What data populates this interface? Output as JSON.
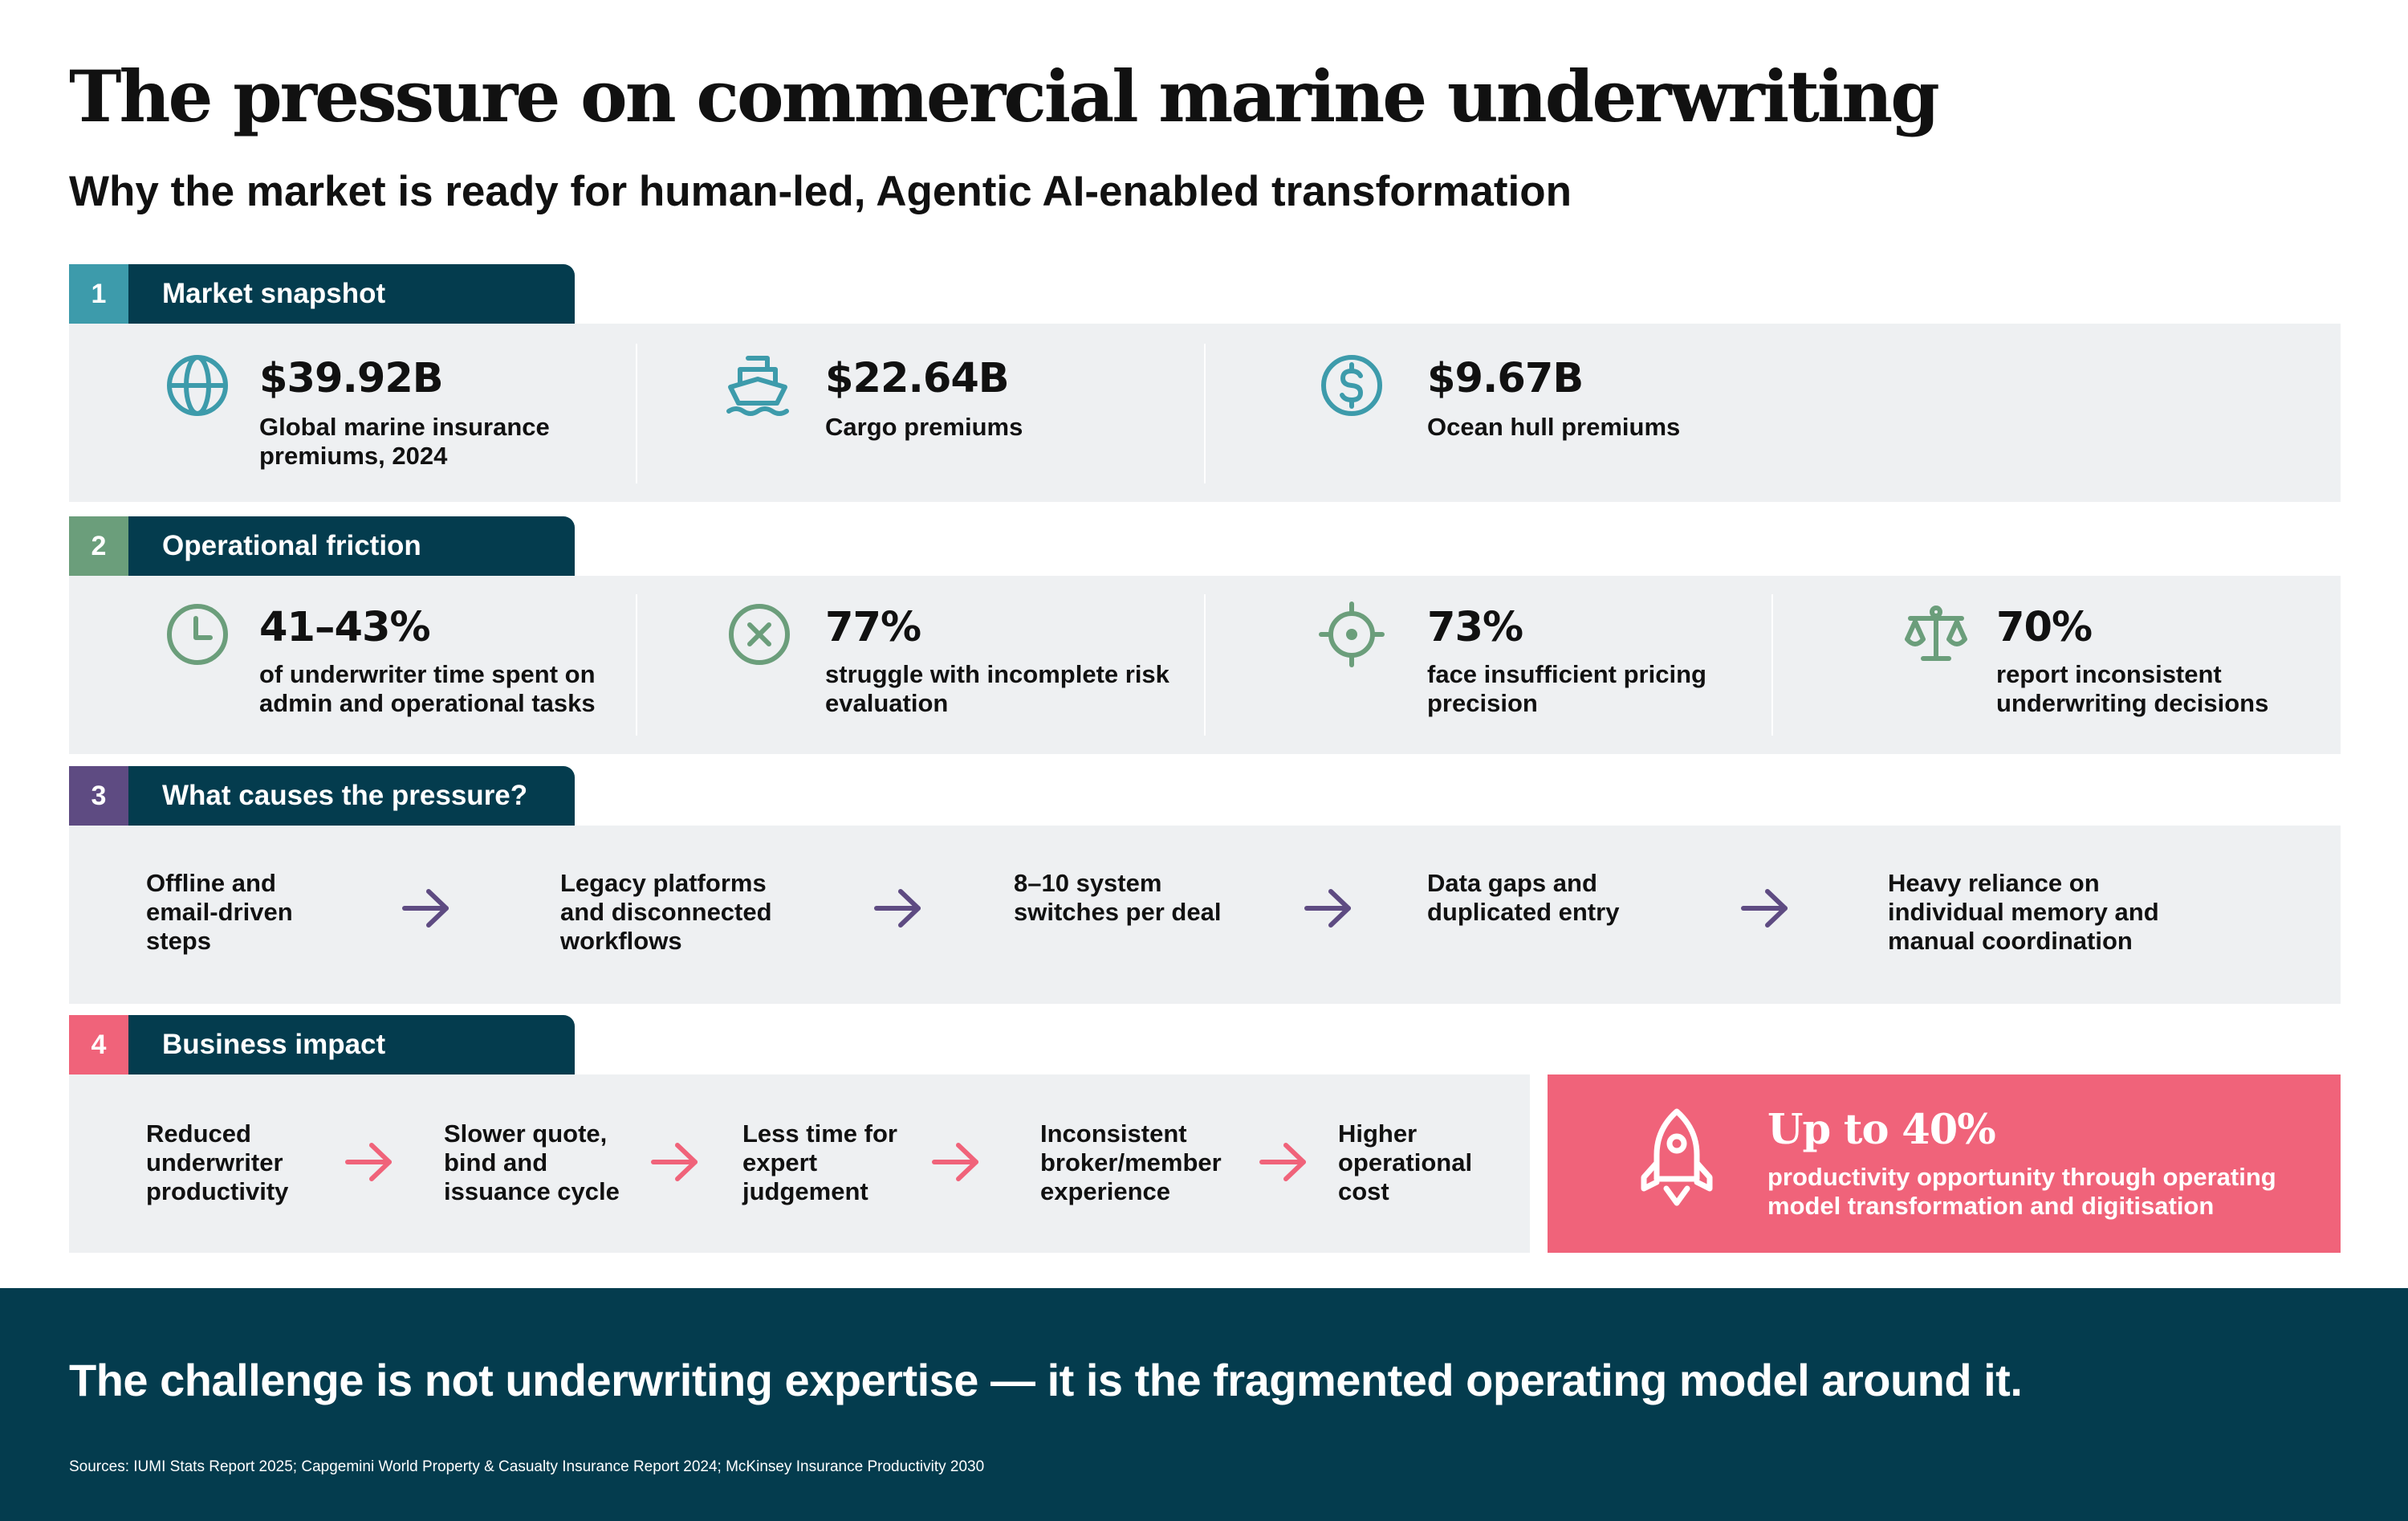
{
  "title": "The pressure on commercial marine underwriting",
  "subtitle": "Why the market is ready for human-led, Agentic AI-enabled transformation",
  "colors": {
    "navy": "#043c4e",
    "teal": "#3d9bab",
    "green": "#6b9e7b",
    "purple": "#5e4b82",
    "pink": "#f0637a",
    "panel": "#eef0f2"
  },
  "sections": [
    {
      "number": "1",
      "title": "Market snapshot",
      "stats": [
        {
          "icon": "globe-icon",
          "value": "$39.92B",
          "label": "Global marine insurance premiums, 2024"
        },
        {
          "icon": "ship-icon",
          "value": "$22.64B",
          "label": "Cargo premiums"
        },
        {
          "icon": "dollar-coin-icon",
          "value": "$9.67B",
          "label": "Ocean hull premiums"
        }
      ]
    },
    {
      "number": "2",
      "title": "Operational friction",
      "stats": [
        {
          "icon": "clock-icon",
          "value": "41–43%",
          "label": "of underwriter time spent on admin and operational tasks"
        },
        {
          "icon": "x-circle-icon",
          "value": "77%",
          "label": "struggle with incomplete risk evaluation"
        },
        {
          "icon": "crosshair-icon",
          "value": "73%",
          "label": "face insufficient pricing precision"
        },
        {
          "icon": "scales-icon",
          "value": "70%",
          "label": "report inconsistent underwriting decisions"
        }
      ]
    },
    {
      "number": "3",
      "title": "What causes the pressure?",
      "causes": [
        "Offline and email-driven steps",
        "Legacy platforms and disconnected workflows",
        "8–10 system switches per deal",
        "Data gaps and duplicated entry",
        "Heavy reliance on individual memory and manual coordination"
      ]
    },
    {
      "number": "4",
      "title": "Business impact",
      "impacts": [
        "Reduced underwriter productivity",
        "Slower quote, bind and issuance cycle",
        "Less time for expert judgement",
        "Inconsistent broker/member experience",
        "Higher operational cost"
      ],
      "highlight": {
        "icon": "rocket-icon",
        "value": "Up to 40%",
        "label": "productivity opportunity through operating model transformation and digitisation"
      }
    }
  ],
  "tagline": "The challenge is not underwriting expertise — it is the fragmented operating model around it.",
  "sources": "Sources: IUMI Stats Report 2025; Capgemini World Property & Casualty Insurance Report 2024; McKinsey Insurance Productivity 2030"
}
